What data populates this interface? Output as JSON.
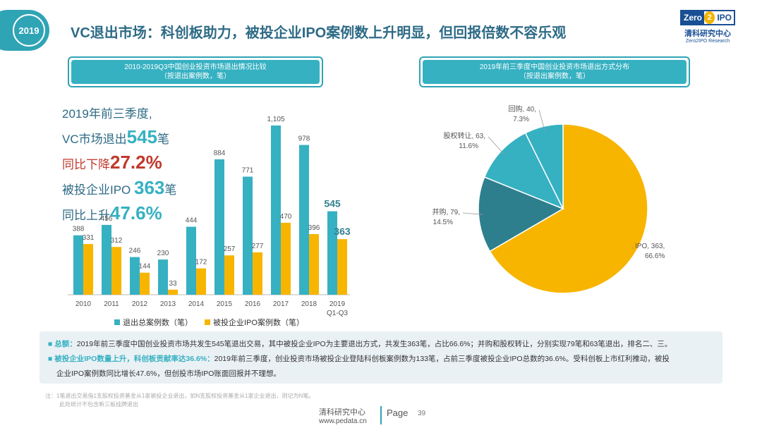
{
  "badge": "2019",
  "title": "VC退出市场：科创板助力，被投企业IPO案例数上升明显，但回报倍数不容乐观",
  "logo": {
    "zero": "Zero",
    "two": "2",
    "ipo": "IPO",
    "cn": "清科研究中心",
    "en": "Zero2IPO Research"
  },
  "left_panel": {
    "line1": "2010-2019Q3中国创业投资市场退出情况比较",
    "line2": "（按退出案例数，笔）"
  },
  "right_panel": {
    "line1": "2019年前三季度中国创业投资市场退出方式分布",
    "line2": "（按退出案例数，笔）"
  },
  "summary": {
    "l1": "2019年前三季度,",
    "l2a": "VC市场退出",
    "l2b": "545",
    "l2c": "笔",
    "l3a": "同比下降",
    "l3b": "27.2%",
    "l4a": "被投企业IPO ",
    "l4b": "363",
    "l4c": "笔",
    "l5a": "同比上升",
    "l5b": "47.6%"
  },
  "legend": {
    "s1": "退出总案例数（笔）",
    "s2": "被投企业IPO案例数（笔）"
  },
  "colors": {
    "teal": "#36b1c2",
    "gold": "#f7b500",
    "dark_teal": "#2e7f8e"
  },
  "chart_data": [
    {
      "type": "bar",
      "categories": [
        "2010",
        "2011",
        "2012",
        "2013",
        "2014",
        "2015",
        "2016",
        "2017",
        "2018",
        "2019\nQ1-Q3"
      ],
      "series": [
        {
          "name": "退出总案例数（笔）",
          "values": [
            388,
            456,
            246,
            230,
            444,
            884,
            771,
            1105,
            978,
            545
          ],
          "labels": [
            "388",
            "456",
            "246",
            "230",
            "444",
            "884",
            "771",
            "1,105",
            "978",
            "545"
          ]
        },
        {
          "name": "被投企业IPO案例数（笔）",
          "values": [
            331,
            312,
            144,
            33,
            172,
            257,
            277,
            470,
            396,
            363
          ],
          "labels": [
            "331",
            "312",
            "144",
            "33",
            "172",
            "257",
            "277",
            "470",
            "396",
            "363"
          ]
        }
      ],
      "ylim": [
        0,
        1150
      ],
      "grid": false
    },
    {
      "type": "pie",
      "slices": [
        {
          "name": "IPO",
          "value": 363,
          "label1": "IPO, 363,",
          "label2": "66.6%",
          "color": "#f7b500"
        },
        {
          "name": "并购",
          "value": 79,
          "label1": "并购, 79,",
          "label2": "14.5%",
          "color": "#2e7f8e"
        },
        {
          "name": "股权转让",
          "value": 63,
          "label1": "股权转让, 63,",
          "label2": "11.6%",
          "color": "#36b1c2"
        },
        {
          "name": "回购",
          "value": 40,
          "label1": "回购, 40,",
          "label2": "7.3%",
          "color": "#36b1c2"
        }
      ]
    }
  ],
  "notes": {
    "p1_head": "总额：",
    "p1_body": "2019年前三季度中国创业投资市场共发生545笔退出交易，其中被投企业IPO为主要退出方式，共发生363笔，占比66.6%；并购和股权转让，分别实现79笔和63笔退出，排名二、三。",
    "p2_head": "被投企业IPO数量上升，科创板贡献率达36.6%：",
    "p2_body": "2019年前三季度，创业投资市场被投企业登陆科创板案例数为133笔，占前三季度被投企业IPO总数的36.6%。受科创板上市红利推动，被投",
    "p2_body2": "企业IPO案例数同比增长47.6%，但创投市场IPO账面回报并不理想。"
  },
  "footnote": {
    "l1": "注：1笔退出交易指1支股权投资基金从1家被投企业退出，如N支股权投资基金从1家企业退出，则记为N笔。",
    "l2": "此处统计不包含新三板挂牌退出"
  },
  "footer": {
    "cn": "清科研究中心",
    "url": "www.pedata.cn",
    "page_label": "Page",
    "page_num": "39"
  }
}
